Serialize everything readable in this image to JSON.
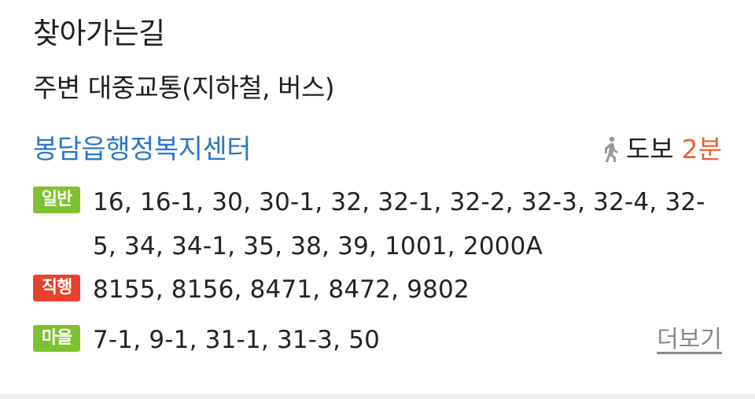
{
  "section": {
    "title": "찾아가는길",
    "subtitle": "주변 대중교통(지하철, 버스)"
  },
  "stop": {
    "name": "봉담읍행정복지센터",
    "walk_icon": "walking-person-icon",
    "walk_label": "도보",
    "walk_time": "2분"
  },
  "buses": {
    "general": {
      "badge": "일반",
      "routes": "16, 16-1, 30, 30-1, 32, 32-1, 32-2, 32-3, 32-4, 32-5, 34, 34-1, 35, 38, 39, 1001, 2000A"
    },
    "express": {
      "badge": "직행",
      "routes": "8155, 8156, 8471, 8472, 9802"
    },
    "village": {
      "badge": "마을",
      "routes": "7-1, 9-1, 31-1, 31-3, 50"
    }
  },
  "more_label": "더보기",
  "colors": {
    "stop_link": "#2a77c9",
    "walk_time": "#e8642c",
    "badge_general": "#7ec232",
    "badge_express": "#e8412c",
    "badge_village": "#7ec232",
    "more_link": "#8a8a8a"
  }
}
